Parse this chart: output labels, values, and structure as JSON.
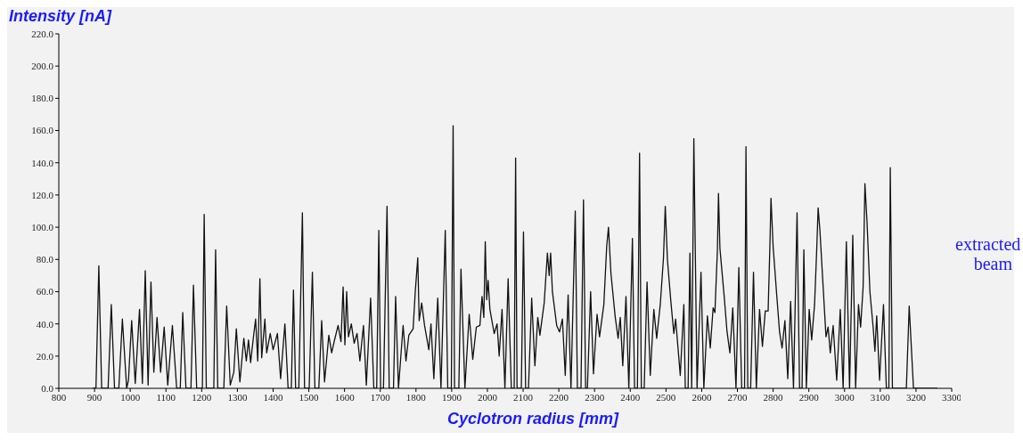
{
  "chart_data": {
    "type": "line",
    "ylabel": "Intensity [nA]",
    "xlabel": "Cyclotron radius [mm]",
    "annotations": [
      "extracted beam"
    ],
    "x": [
      895,
      904,
      912,
      920,
      938,
      947,
      956,
      968,
      978,
      990,
      995,
      1004,
      1014,
      1026,
      1034,
      1042,
      1050,
      1058,
      1066,
      1075,
      1085,
      1095,
      1105,
      1118,
      1130,
      1140,
      1147,
      1156,
      1170,
      1177,
      1186,
      1202,
      1207,
      1213,
      1234,
      1239,
      1245,
      1262,
      1270,
      1280,
      1290,
      1297,
      1307,
      1318,
      1325,
      1331,
      1337,
      1345,
      1351,
      1357,
      1363,
      1368,
      1377,
      1382,
      1392,
      1400,
      1412,
      1421,
      1433,
      1442,
      1451,
      1457,
      1463,
      1472,
      1482,
      1488,
      1501,
      1510,
      1517,
      1528,
      1536,
      1544,
      1556,
      1564,
      1572,
      1582,
      1590,
      1596,
      1601,
      1606,
      1611,
      1619,
      1627,
      1635,
      1643,
      1653,
      1661,
      1673,
      1682,
      1690,
      1696,
      1701,
      1709,
      1719,
      1725,
      1737,
      1743,
      1751,
      1764,
      1772,
      1780,
      1792,
      1798,
      1805,
      1809,
      1816,
      1824,
      1836,
      1842,
      1850,
      1861,
      1870,
      1882,
      1889,
      1899,
      1904,
      1908,
      1920,
      1926,
      1937,
      1949,
      1959,
      1969,
      1979,
      1985,
      1990,
      1994,
      1998,
      2002,
      2007,
      2019,
      2027,
      2033,
      2041,
      2049,
      2058,
      2067,
      2075,
      2079,
      2083,
      2095,
      2101,
      2107,
      2115,
      2124,
      2133,
      2141,
      2147,
      2159,
      2168,
      2173,
      2177,
      2182,
      2194,
      2202,
      2210,
      2218,
      2226,
      2234,
      2246,
      2252,
      2262,
      2269,
      2275,
      2280,
      2289,
      2297,
      2307,
      2314,
      2326,
      2334,
      2339,
      2346,
      2358,
      2366,
      2372,
      2379,
      2388,
      2396,
      2406,
      2412,
      2420,
      2426,
      2431,
      2439,
      2447,
      2456,
      2466,
      2474,
      2484,
      2493,
      2498,
      2504,
      2514,
      2522,
      2527,
      2540,
      2550,
      2554,
      2562,
      2567,
      2572,
      2578,
      2587,
      2598,
      2606,
      2616,
      2624,
      2632,
      2637,
      2644,
      2647,
      2651,
      2663,
      2671,
      2679,
      2687,
      2696,
      2704,
      2712,
      2720,
      2724,
      2729,
      2737,
      2745,
      2753,
      2762,
      2770,
      2778,
      2786,
      2791,
      2794,
      2800,
      2810,
      2818,
      2825,
      2833,
      2841,
      2849,
      2857,
      2867,
      2874,
      2881,
      2886,
      2893,
      2901,
      2908,
      2916,
      2922,
      2926,
      2931,
      2940,
      2948,
      2954,
      2960,
      2968,
      2978,
      2988,
      2996,
      3005,
      3014,
      3023,
      3031,
      3039,
      3045,
      3052,
      3057,
      3063,
      3071,
      3080,
      3085,
      3090,
      3098,
      3109,
      3117,
      3124,
      3128,
      3134,
      3173,
      3181,
      3193,
      3260
    ],
    "series": [
      {
        "color": "#111111",
        "values": [
          0,
          0,
          76,
          0,
          0,
          52,
          0,
          0,
          43,
          0,
          5,
          42,
          3,
          49,
          3,
          73,
          2,
          66,
          10,
          44,
          10,
          38,
          2,
          39,
          0,
          0,
          47,
          0,
          0,
          64,
          0,
          0,
          108,
          0,
          0,
          86,
          0,
          0,
          51,
          2,
          10,
          37,
          4,
          31,
          17,
          30,
          16,
          32,
          43,
          17,
          68,
          19,
          43,
          22,
          34,
          24,
          34,
          6,
          40,
          0,
          0,
          61,
          0,
          0,
          109,
          0,
          0,
          72,
          0,
          0,
          42,
          4,
          33,
          22,
          30,
          39,
          29,
          63,
          27,
          60,
          32,
          40,
          28,
          34,
          17,
          39,
          2,
          56,
          0,
          0,
          98,
          0,
          0,
          113,
          0,
          0,
          57,
          0,
          39,
          17,
          33,
          37,
          60,
          81,
          42,
          53,
          39,
          24,
          40,
          6,
          56,
          0,
          98,
          0,
          0,
          163,
          0,
          0,
          74,
          0,
          46,
          18,
          38,
          39,
          57,
          44,
          91,
          55,
          67,
          49,
          34,
          40,
          20,
          49,
          0,
          68,
          0,
          0,
          143,
          0,
          0,
          97,
          0,
          0,
          56,
          14,
          44,
          33,
          53,
          84,
          70,
          84,
          60,
          39,
          35,
          43,
          8,
          58,
          0,
          110,
          0,
          0,
          117,
          0,
          0,
          60,
          9,
          46,
          32,
          52,
          88,
          100,
          71,
          44,
          31,
          44,
          14,
          57,
          0,
          93,
          0,
          0,
          146,
          0,
          0,
          66,
          8,
          49,
          31,
          52,
          81,
          113,
          80,
          53,
          34,
          43,
          8,
          52,
          0,
          0,
          84,
          0,
          155,
          0,
          72,
          0,
          45,
          25,
          50,
          47,
          86,
          121,
          87,
          57,
          35,
          22,
          50,
          0,
          75,
          0,
          0,
          150,
          0,
          0,
          72,
          0,
          49,
          26,
          48,
          48,
          89,
          118,
          88,
          58,
          35,
          25,
          42,
          6,
          54,
          0,
          109,
          0,
          0,
          86,
          0,
          49,
          30,
          52,
          86,
          112,
          98,
          63,
          32,
          38,
          22,
          39,
          5,
          49,
          0,
          91,
          0,
          95,
          0,
          52,
          38,
          63,
          127,
          103,
          60,
          38,
          23,
          45,
          5,
          52,
          0,
          0,
          137,
          0,
          0,
          51,
          0,
          0
        ]
      }
    ],
    "xlim": [
      800,
      3300
    ],
    "xticks": [
      800,
      900,
      1000,
      1100,
      1200,
      1300,
      1400,
      1500,
      1600,
      1700,
      1800,
      1900,
      2000,
      2100,
      2200,
      2300,
      2400,
      2500,
      2600,
      2700,
      2800,
      2900,
      3000,
      3100,
      3200,
      3300
    ],
    "ylim": [
      0,
      220
    ],
    "yticks": [
      {
        "value": 0,
        "label": "0.0"
      },
      {
        "value": 20,
        "label": "20.0"
      },
      {
        "value": 40,
        "label": "40.0"
      },
      {
        "value": 60,
        "label": "60.0"
      },
      {
        "value": 80,
        "label": "80.0"
      },
      {
        "value": 100,
        "label": "100.0"
      },
      {
        "value": 120,
        "label": "120.0"
      },
      {
        "value": 140,
        "label": "140.0"
      },
      {
        "value": 160,
        "label": "160.0"
      },
      {
        "value": 180,
        "label": "180.0"
      },
      {
        "value": 200,
        "label": "200.0"
      },
      {
        "value": 220,
        "label": "220.0"
      }
    ],
    "grid": false,
    "legend": false,
    "marker": "none",
    "line_style": "solid"
  }
}
